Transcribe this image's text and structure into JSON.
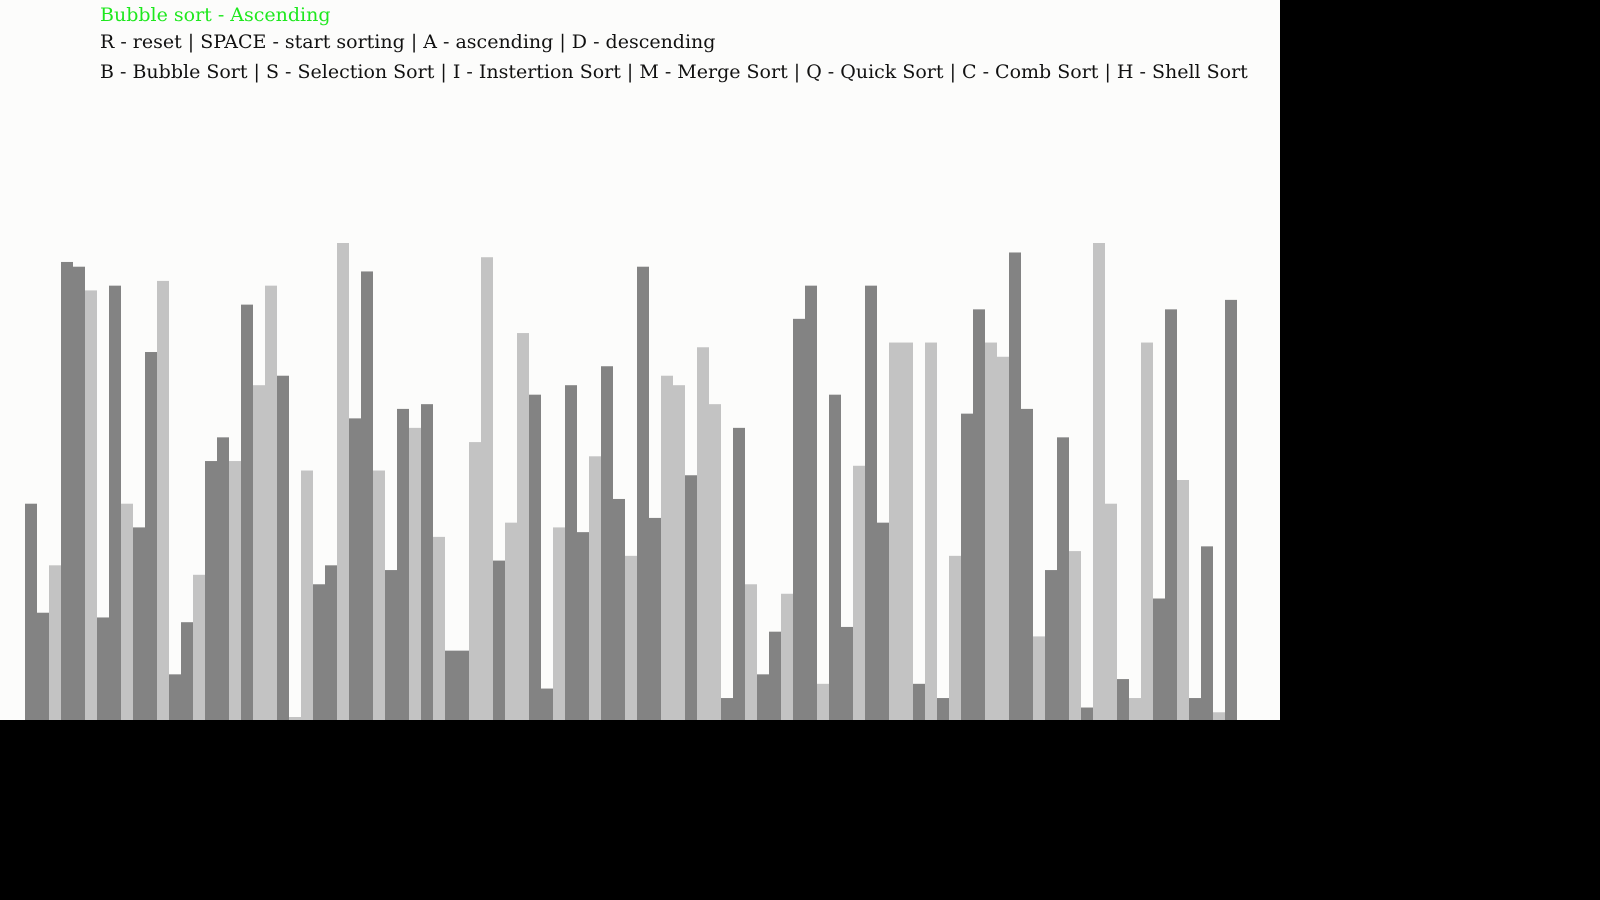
{
  "hud": {
    "title": "Bubble sort - Ascending",
    "controls": "R - reset | SPACE - start sorting | A - ascending | D - descending",
    "algorithms": "B - Bubble Sort | S - Selection Sort | I - Instertion Sort | M - Merge Sort | Q - Quick Sort | C - Comb Sort | H - Shell Sort"
  },
  "colors": {
    "title": "#1ee81e",
    "text": "#111111",
    "canvas_bg": "#fcfcfb",
    "outside_bg": "#000000",
    "bar_dark": "#838383",
    "bar_light": "#c3c3c3"
  },
  "chart_data": {
    "type": "bar",
    "ylim": [
      0,
      100
    ],
    "values": [
      45,
      22,
      32,
      96,
      95,
      90,
      21,
      91,
      45,
      40,
      77,
      92,
      9,
      20,
      30,
      54,
      59,
      54,
      87,
      70,
      91,
      72,
      0,
      52,
      28,
      32,
      100,
      63,
      94,
      52,
      31,
      65,
      61,
      66,
      38,
      14,
      14,
      58,
      97,
      33,
      41,
      81,
      68,
      6,
      40,
      70,
      39,
      55,
      74,
      46,
      34,
      95,
      42,
      72,
      70,
      51,
      78,
      66,
      4,
      61,
      28,
      9,
      18,
      26,
      84,
      91,
      7,
      68,
      19,
      53,
      91,
      41,
      79,
      79,
      7,
      79,
      4,
      34,
      64,
      86,
      79,
      76,
      98,
      65,
      17,
      31,
      59,
      35,
      2,
      100,
      45,
      8,
      4,
      79,
      25,
      86,
      50,
      4,
      36,
      1,
      88
    ],
    "bar_tones": [
      "dark",
      "dark",
      "light",
      "dark",
      "dark",
      "light",
      "dark",
      "dark",
      "light",
      "dark",
      "dark",
      "light",
      "dark",
      "dark",
      "light",
      "dark",
      "dark",
      "light",
      "dark",
      "light",
      "light",
      "dark",
      "light",
      "light",
      "dark",
      "dark",
      "light",
      "dark",
      "dark",
      "light",
      "dark",
      "dark",
      "light",
      "dark",
      "light",
      "dark",
      "dark",
      "light",
      "light",
      "dark",
      "light",
      "light",
      "dark",
      "dark",
      "light",
      "dark",
      "dark",
      "light",
      "dark",
      "dark",
      "light",
      "dark",
      "dark",
      "light",
      "light",
      "dark",
      "light",
      "light",
      "dark",
      "dark",
      "light",
      "dark",
      "dark",
      "light",
      "dark",
      "dark",
      "light",
      "dark",
      "dark",
      "light",
      "dark",
      "dark",
      "light",
      "light",
      "dark",
      "light",
      "dark",
      "light",
      "dark",
      "dark",
      "light",
      "light",
      "dark",
      "dark",
      "light",
      "dark",
      "dark",
      "light",
      "dark",
      "light",
      "light",
      "dark",
      "light",
      "light",
      "dark",
      "dark",
      "light",
      "dark",
      "dark",
      "light",
      "dark"
    ]
  }
}
